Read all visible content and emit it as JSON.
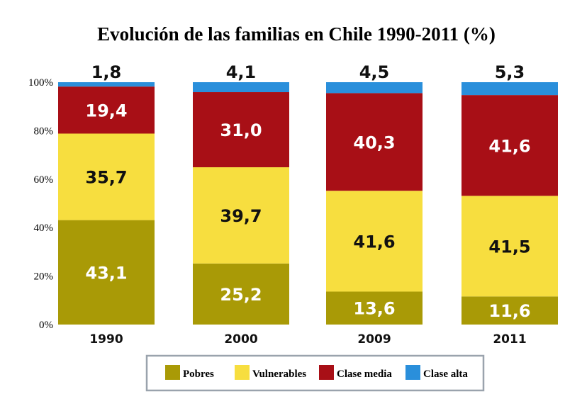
{
  "chart_data": {
    "type": "bar",
    "stacked": true,
    "title": "Evolución de las familias en Chile 1990-2011 (%)",
    "categories": [
      "1990",
      "2000",
      "2009",
      "2011"
    ],
    "series": [
      {
        "name": "Pobres",
        "color": "#a99a06",
        "text_color": "#ffffff",
        "values": [
          43.1,
          25.2,
          13.6,
          11.6
        ],
        "labels": [
          "43,1",
          "25,2",
          "13,6",
          "11,6"
        ]
      },
      {
        "name": "Vulnerables",
        "color": "#f7de3f",
        "text_color": "#111111",
        "values": [
          35.7,
          39.7,
          41.6,
          41.5
        ],
        "labels": [
          "35,7",
          "39,7",
          "41,6",
          "41,5"
        ]
      },
      {
        "name": "Clase media",
        "color": "#a80f16",
        "text_color": "#ffffff",
        "values": [
          19.4,
          31.0,
          40.3,
          41.6
        ],
        "labels": [
          "19,4",
          "31,0",
          "40,3",
          "41,6"
        ]
      },
      {
        "name": "Clase alta",
        "color": "#2a8fdb",
        "text_color": "#111111",
        "values": [
          1.8,
          4.1,
          4.5,
          5.3
        ],
        "labels": [
          "1,8",
          "4,1",
          "4,5",
          "5,3"
        ]
      }
    ],
    "yticks": [
      "0%",
      "20%",
      "40%",
      "60%",
      "80%",
      "100%"
    ],
    "ylim": [
      0,
      100
    ],
    "legend_position": "bottom-center",
    "grid": false
  }
}
